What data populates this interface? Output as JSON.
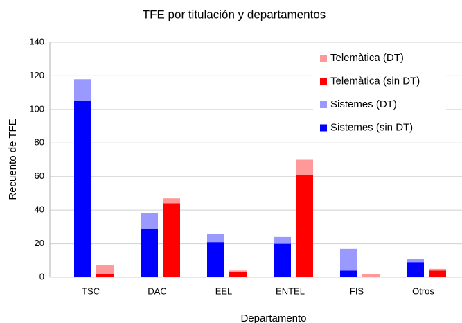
{
  "chart_data": {
    "type": "stacked_grouped_bar",
    "title": "TFE por titulación y departamentos",
    "xlabel": "Departamento",
    "ylabel": "Recuento de TFE",
    "categories": [
      "TSC",
      "DAC",
      "EEL",
      "ENTEL",
      "FIS",
      "Otros"
    ],
    "series": [
      {
        "name": "Sistemes (sin DT)",
        "color": "#0000ff",
        "stack": 0,
        "values": [
          105,
          29,
          21,
          20,
          4,
          9
        ]
      },
      {
        "name": "Sistemes (DT)",
        "color": "#9999ff",
        "stack": 0,
        "values": [
          13,
          9,
          5,
          4,
          13,
          2
        ]
      },
      {
        "name": "Telemàtica (sin DT)",
        "color": "#ff0000",
        "stack": 1,
        "values": [
          2,
          44,
          3,
          61,
          0,
          4
        ]
      },
      {
        "name": "Telemàtica (DT)",
        "color": "#ff9999",
        "stack": 1,
        "values": [
          5,
          3,
          1,
          9,
          2,
          1
        ]
      }
    ],
    "ylim": [
      0,
      140
    ],
    "yticks": [
      0,
      20,
      40,
      60,
      80,
      100,
      120,
      140
    ],
    "grid": true,
    "legend": "top-right"
  }
}
